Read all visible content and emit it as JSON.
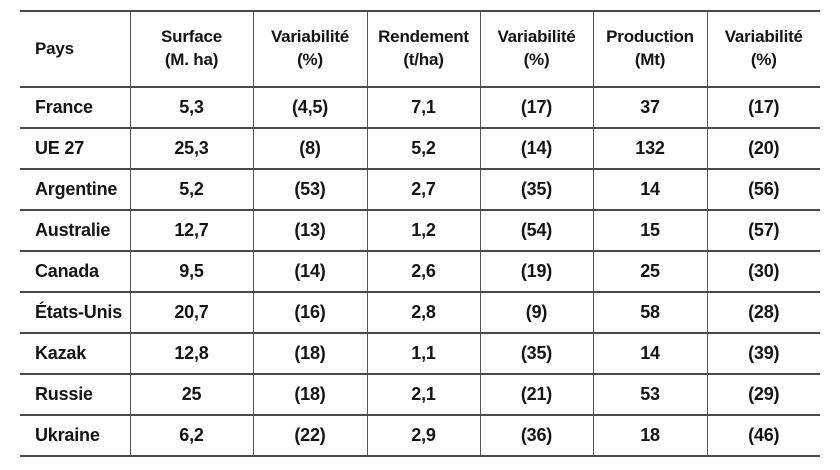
{
  "table": {
    "columns": [
      {
        "label": "Pays",
        "sublabel": ""
      },
      {
        "label": "Surface",
        "sublabel": "(M. ha)"
      },
      {
        "label": "Variabilité",
        "sublabel": "(%)"
      },
      {
        "label": "Rendement",
        "sublabel": "(t/ha)"
      },
      {
        "label": "Variabilité",
        "sublabel": "(%)"
      },
      {
        "label": "Production",
        "sublabel": "(Mt)"
      },
      {
        "label": "Variabilité",
        "sublabel": "(%)"
      }
    ],
    "rows": [
      [
        "France",
        "5,3",
        "(4,5)",
        "7,1",
        "(17)",
        "37",
        "(17)"
      ],
      [
        "UE 27",
        "25,3",
        "(8)",
        "5,2",
        "(14)",
        "132",
        "(20)"
      ],
      [
        "Argentine",
        "5,2",
        "(53)",
        "2,7",
        "(35)",
        "14",
        "(56)"
      ],
      [
        "Australie",
        "12,7",
        "(13)",
        "1,2",
        "(54)",
        "15",
        "(57)"
      ],
      [
        "Canada",
        "9,5",
        "(14)",
        "2,6",
        "(19)",
        "25",
        "(30)"
      ],
      [
        "États-Unis",
        "20,7",
        "(16)",
        "2,8",
        "(9)",
        "58",
        "(28)"
      ],
      [
        "Kazak",
        "12,8",
        "(18)",
        "1,1",
        "(35)",
        "14",
        "(39)"
      ],
      [
        "Russie",
        "25",
        "(18)",
        "2,1",
        "(21)",
        "53",
        "(29)"
      ],
      [
        "Ukraine",
        "6,2",
        "(22)",
        "2,9",
        "(36)",
        "18",
        "(46)"
      ]
    ]
  },
  "chart_data": {
    "type": "table",
    "title": "",
    "columns": [
      "Pays",
      "Surface (M. ha)",
      "Variabilité (%)",
      "Rendement (t/ha)",
      "Variabilité (%)",
      "Production (Mt)",
      "Variabilité (%)"
    ],
    "rows": [
      [
        "France",
        "5,3",
        "(4,5)",
        "7,1",
        "(17)",
        "37",
        "(17)"
      ],
      [
        "UE 27",
        "25,3",
        "(8)",
        "5,2",
        "(14)",
        "132",
        "(20)"
      ],
      [
        "Argentine",
        "5,2",
        "(53)",
        "2,7",
        "(35)",
        "14",
        "(56)"
      ],
      [
        "Australie",
        "12,7",
        "(13)",
        "1,2",
        "(54)",
        "15",
        "(57)"
      ],
      [
        "Canada",
        "9,5",
        "(14)",
        "2,6",
        "(19)",
        "25",
        "(30)"
      ],
      [
        "États-Unis",
        "20,7",
        "(16)",
        "2,8",
        "(9)",
        "58",
        "(28)"
      ],
      [
        "Kazak",
        "12,8",
        "(18)",
        "1,1",
        "(35)",
        "14",
        "(39)"
      ],
      [
        "Russie",
        "25",
        "(18)",
        "2,1",
        "(21)",
        "53",
        "(29)"
      ],
      [
        "Ukraine",
        "6,2",
        "(22)",
        "2,9",
        "(36)",
        "18",
        "(46)"
      ]
    ]
  }
}
